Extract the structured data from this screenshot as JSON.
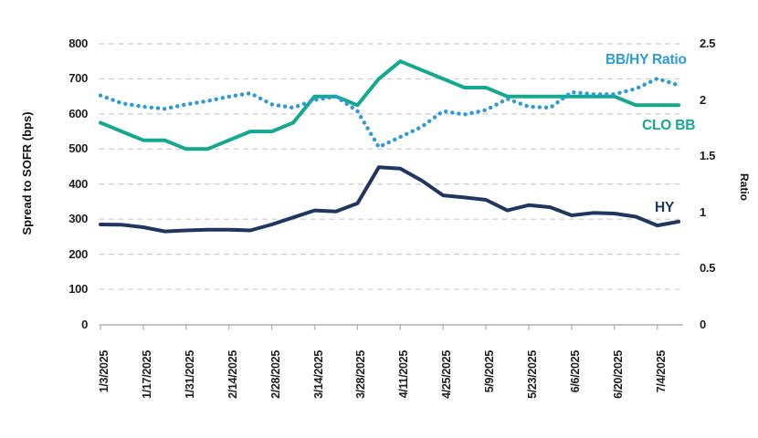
{
  "chart_data": {
    "type": "line",
    "left_axis": {
      "label": "Spread to SOFR (bps)",
      "min": 0,
      "max": 800,
      "tick_values": [
        800,
        700,
        600,
        500,
        400,
        300,
        200,
        100,
        0
      ],
      "grid": "dashed-horizontal"
    },
    "right_axis": {
      "label": "Ratio",
      "min": 0,
      "max": 2.5,
      "tick_labels": [
        "2.5",
        "2",
        "1.5",
        "1",
        "0.5",
        "0"
      ],
      "tick_values": [
        2.5,
        2,
        1.5,
        1,
        0.5,
        0
      ]
    },
    "x": [
      "1/3/2025",
      "1/10/2025",
      "1/17/2025",
      "1/24/2025",
      "1/31/2025",
      "2/7/2025",
      "2/14/2025",
      "2/21/2025",
      "2/28/2025",
      "3/7/2025",
      "3/14/2025",
      "3/21/2025",
      "3/28/2025",
      "4/4/2025",
      "4/11/2025",
      "4/18/2025",
      "4/25/2025",
      "5/2/2025",
      "5/9/2025",
      "5/16/2025",
      "5/23/2025",
      "5/30/2025",
      "6/6/2025",
      "6/13/2025",
      "6/20/2025",
      "6/27/2025",
      "7/4/2025",
      "7/11/2025"
    ],
    "x_label_every": 2,
    "x_labeled_ticks": [
      "1/3/2025",
      "1/17/2025",
      "1/31/2025",
      "2/14/2025",
      "2/28/2025",
      "3/14/2025",
      "3/28/2025",
      "4/11/2025",
      "4/25/2025",
      "5/9/2025",
      "5/23/2025",
      "6/6/2025",
      "6/20/2025",
      "7/4/2025"
    ],
    "series": [
      {
        "name": "CLO BB",
        "axis": "left",
        "style": "solid",
        "color": "#14A88E",
        "values": [
          575,
          550,
          525,
          525,
          500,
          500,
          525,
          550,
          550,
          575,
          650,
          650,
          625,
          700,
          750,
          725,
          700,
          675,
          675,
          650,
          650,
          650,
          650,
          650,
          650,
          625,
          625,
          625
        ]
      },
      {
        "name": "HY",
        "axis": "left",
        "style": "solid",
        "color": "#20365E",
        "values": [
          285,
          284,
          277,
          265,
          268,
          270,
          270,
          268,
          285,
          305,
          325,
          322,
          345,
          448,
          444,
          410,
          368,
          362,
          355,
          325,
          340,
          334,
          311,
          318,
          316,
          307,
          282,
          293
        ]
      },
      {
        "name": "BB/HY Ratio",
        "axis": "right",
        "style": "dotted",
        "color": "#2E9BD6",
        "values": [
          2.04,
          1.97,
          1.94,
          1.92,
          1.96,
          1.99,
          2.03,
          2.06,
          1.96,
          1.93,
          2.0,
          2.03,
          1.9,
          1.58,
          1.67,
          1.76,
          1.9,
          1.87,
          1.91,
          2.01,
          1.94,
          1.93,
          2.07,
          2.05,
          2.05,
          2.1,
          2.19,
          2.13
        ]
      }
    ],
    "legend": {
      "ratio_label": "BB/HY Ratio",
      "clobb_label": "CLO BB",
      "hy_label": "HY",
      "position": "inline-right"
    },
    "colors": {
      "teal": "#14A88E",
      "navy": "#20365E",
      "light_blue": "#2E9BD6",
      "gridline": "#cccccc",
      "axis_line": "#b0b0b0"
    }
  }
}
